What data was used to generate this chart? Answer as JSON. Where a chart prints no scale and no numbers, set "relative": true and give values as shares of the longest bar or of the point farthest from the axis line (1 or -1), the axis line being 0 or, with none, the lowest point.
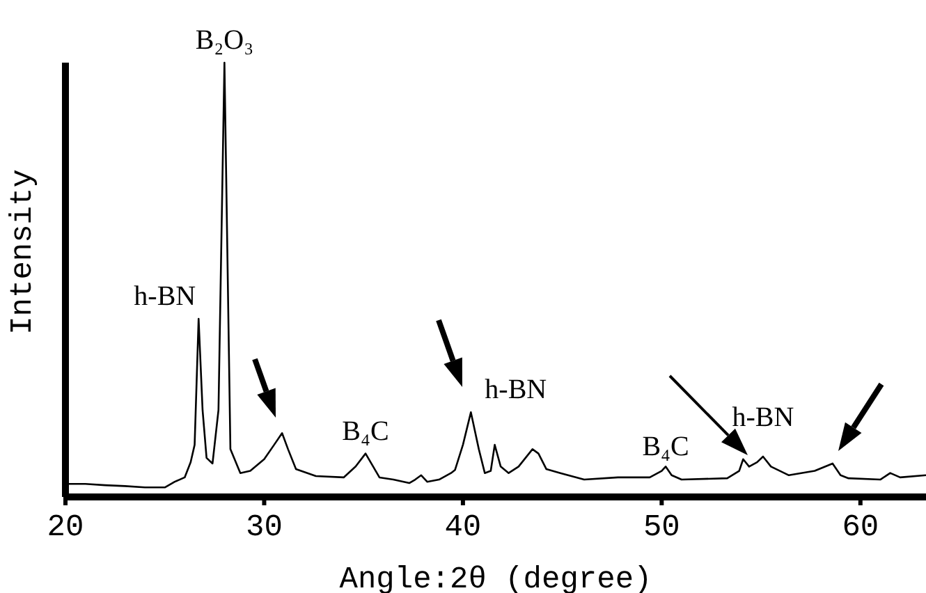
{
  "chart_data": {
    "type": "line",
    "relative": true,
    "xlabel": "Angle:2θ (degree)",
    "ylabel": "Intensity",
    "xlim": [
      20,
      63.3
    ],
    "xticks": [
      20,
      30,
      40,
      50,
      60
    ],
    "marker": "none",
    "line_style": "solid",
    "series": [
      {
        "color": "#000000",
        "x": [
          20,
          21,
          22,
          23,
          24,
          25,
          25.5,
          26,
          26.3,
          26.5,
          26.7,
          26.9,
          27.1,
          27.4,
          27.7,
          28.0,
          28.3,
          28.8,
          29.3,
          30.0,
          30.5,
          30.9,
          31.2,
          31.6,
          32.6,
          34.0,
          34.6,
          35.1,
          35.8,
          36.5,
          37.3,
          37.6,
          37.9,
          38.2,
          38.8,
          39.4,
          39.6,
          40.0,
          40.4,
          40.8,
          41.1,
          41.4,
          41.6,
          41.9,
          42.3,
          42.8,
          43.5,
          43.8,
          44.2,
          44.9,
          46.1,
          47.8,
          49.4,
          50.0,
          50.2,
          50.5,
          51.0,
          53.3,
          53.9,
          54.1,
          54.4,
          54.8,
          55.1,
          55.5,
          56.4,
          57.7,
          58.6,
          59.0,
          59.4,
          61.0,
          61.5,
          62.0,
          63.3
        ],
        "values": [
          0.03,
          0.03,
          0.027,
          0.025,
          0.022,
          0.022,
          0.035,
          0.045,
          0.08,
          0.12,
          0.41,
          0.2,
          0.09,
          0.077,
          0.2,
          1.0,
          0.11,
          0.055,
          0.06,
          0.087,
          0.12,
          0.147,
          0.11,
          0.064,
          0.048,
          0.045,
          0.07,
          0.1,
          0.045,
          0.04,
          0.032,
          0.04,
          0.05,
          0.035,
          0.04,
          0.055,
          0.062,
          0.12,
          0.195,
          0.11,
          0.055,
          0.06,
          0.12,
          0.07,
          0.055,
          0.07,
          0.11,
          0.1,
          0.064,
          0.055,
          0.04,
          0.045,
          0.045,
          0.06,
          0.07,
          0.05,
          0.04,
          0.043,
          0.06,
          0.087,
          0.07,
          0.08,
          0.093,
          0.07,
          0.05,
          0.06,
          0.077,
          0.05,
          0.043,
          0.04,
          0.055,
          0.045,
          0.05
        ]
      }
    ],
    "annotations": [
      {
        "text": "B₂O₃",
        "x": 28.0,
        "y": 1.0
      },
      {
        "text": "h-BN",
        "x": 26.7,
        "y": 0.41
      },
      {
        "text": "B₄C",
        "x": 35.1,
        "y": 0.1
      },
      {
        "text": "h-BN",
        "x": 40.4,
        "y": 0.195
      },
      {
        "text": "B₄C",
        "x": 50.2,
        "y": 0.07
      },
      {
        "text": "h-BN",
        "x": 55.1,
        "y": 0.093
      }
    ]
  }
}
